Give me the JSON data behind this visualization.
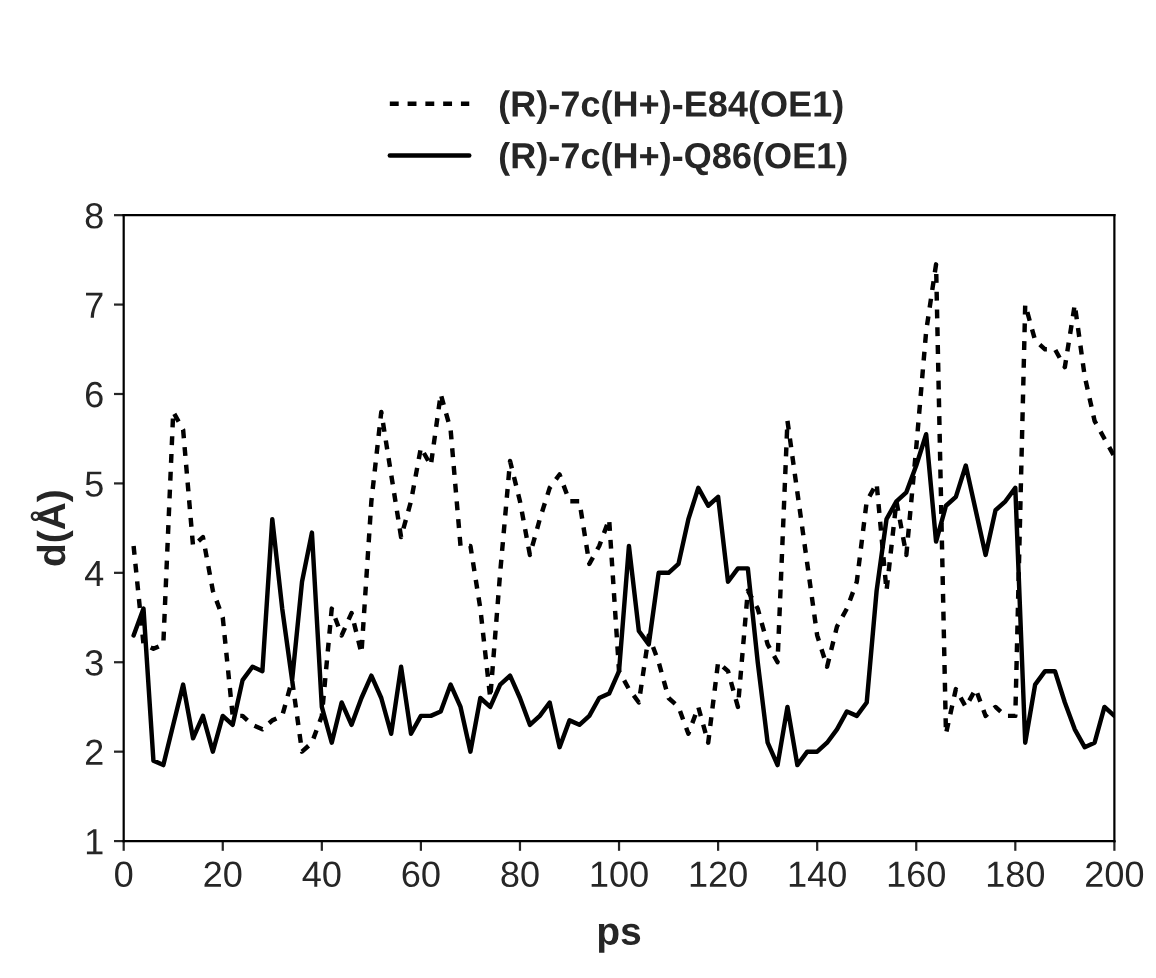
{
  "chart_data": {
    "type": "line",
    "xlabel": "ps",
    "ylabel": "d(Å)",
    "x": [
      2,
      4,
      6,
      8,
      10,
      12,
      14,
      16,
      18,
      20,
      22,
      24,
      26,
      28,
      30,
      32,
      34,
      36,
      38,
      40,
      42,
      44,
      46,
      48,
      50,
      52,
      54,
      56,
      58,
      60,
      62,
      64,
      66,
      68,
      70,
      72,
      74,
      76,
      78,
      80,
      82,
      84,
      86,
      88,
      90,
      92,
      94,
      96,
      98,
      100,
      102,
      104,
      106,
      108,
      110,
      112,
      114,
      116,
      118,
      120,
      122,
      124,
      126,
      128,
      130,
      132,
      134,
      136,
      138,
      140,
      142,
      144,
      146,
      148,
      150,
      152,
      154,
      156,
      158,
      160,
      162,
      164,
      166,
      168,
      170,
      172,
      174,
      176,
      178,
      180,
      182,
      184,
      186,
      188,
      190,
      192,
      194,
      196,
      198,
      200
    ],
    "series": [
      {
        "name": "(R)-7c(H+)-E84(OE1)",
        "color": "#000000",
        "line_style": "dotted",
        "values": [
          4.3,
          3.2,
          3.15,
          3.2,
          5.8,
          5.6,
          4.3,
          4.4,
          3.8,
          3.5,
          2.4,
          2.4,
          2.3,
          2.25,
          2.35,
          2.4,
          2.8,
          2.0,
          2.1,
          2.4,
          3.6,
          3.3,
          3.55,
          3.1,
          4.8,
          5.8,
          5.1,
          4.4,
          4.8,
          5.4,
          5.2,
          6.0,
          5.6,
          4.3,
          4.3,
          3.6,
          2.6,
          4.0,
          5.25,
          4.8,
          4.2,
          4.6,
          4.95,
          5.1,
          4.8,
          4.8,
          4.1,
          4.3,
          4.6,
          2.9,
          2.7,
          2.55,
          3.3,
          3.0,
          2.6,
          2.5,
          2.2,
          2.5,
          2.1,
          3.0,
          2.9,
          2.5,
          3.8,
          3.6,
          3.2,
          3.0,
          5.7,
          4.9,
          4.1,
          3.3,
          2.95,
          3.4,
          3.6,
          3.9,
          4.8,
          5.0,
          3.8,
          4.8,
          4.2,
          5.4,
          6.7,
          7.45,
          2.2,
          2.7,
          2.5,
          2.7,
          2.4,
          2.5,
          2.4,
          2.4,
          7.0,
          6.6,
          6.5,
          6.5,
          6.3,
          7.0,
          6.2,
          5.7,
          5.5,
          5.3
        ]
      },
      {
        "name": "(R)-7c(H+)-Q86(OE1)",
        "color": "#000000",
        "line_style": "solid",
        "values": [
          3.3,
          3.6,
          1.9,
          1.85,
          2.3,
          2.75,
          2.15,
          2.4,
          2.0,
          2.4,
          2.3,
          2.8,
          2.95,
          2.9,
          4.6,
          3.6,
          2.8,
          3.9,
          4.45,
          2.5,
          2.1,
          2.55,
          2.3,
          2.6,
          2.85,
          2.6,
          2.2,
          2.95,
          2.2,
          2.4,
          2.4,
          2.45,
          2.75,
          2.5,
          2.0,
          2.6,
          2.5,
          2.75,
          2.85,
          2.6,
          2.3,
          2.4,
          2.55,
          2.05,
          2.35,
          2.3,
          2.4,
          2.6,
          2.65,
          2.9,
          4.3,
          3.35,
          3.2,
          4.0,
          4.0,
          4.1,
          4.6,
          4.95,
          4.75,
          4.85,
          3.9,
          4.05,
          4.05,
          3.0,
          2.1,
          1.85,
          2.5,
          1.85,
          2.0,
          2.0,
          2.1,
          2.25,
          2.45,
          2.4,
          2.55,
          3.8,
          4.6,
          4.8,
          4.9,
          5.2,
          5.55,
          4.35,
          4.75,
          4.85,
          5.2,
          4.7,
          4.2,
          4.7,
          4.8,
          4.95,
          2.1,
          2.75,
          2.9,
          2.9,
          2.55,
          2.25,
          2.05,
          2.1,
          2.5,
          2.4
        ]
      }
    ],
    "xlim": [
      0,
      200
    ],
    "xticks": [
      0,
      20,
      40,
      60,
      80,
      100,
      120,
      140,
      160,
      180,
      200
    ],
    "ylim": [
      1,
      8
    ],
    "yticks": [
      1,
      2,
      3,
      4,
      5,
      6,
      7,
      8
    ],
    "grid": false,
    "legend": "top",
    "marker": "none"
  }
}
